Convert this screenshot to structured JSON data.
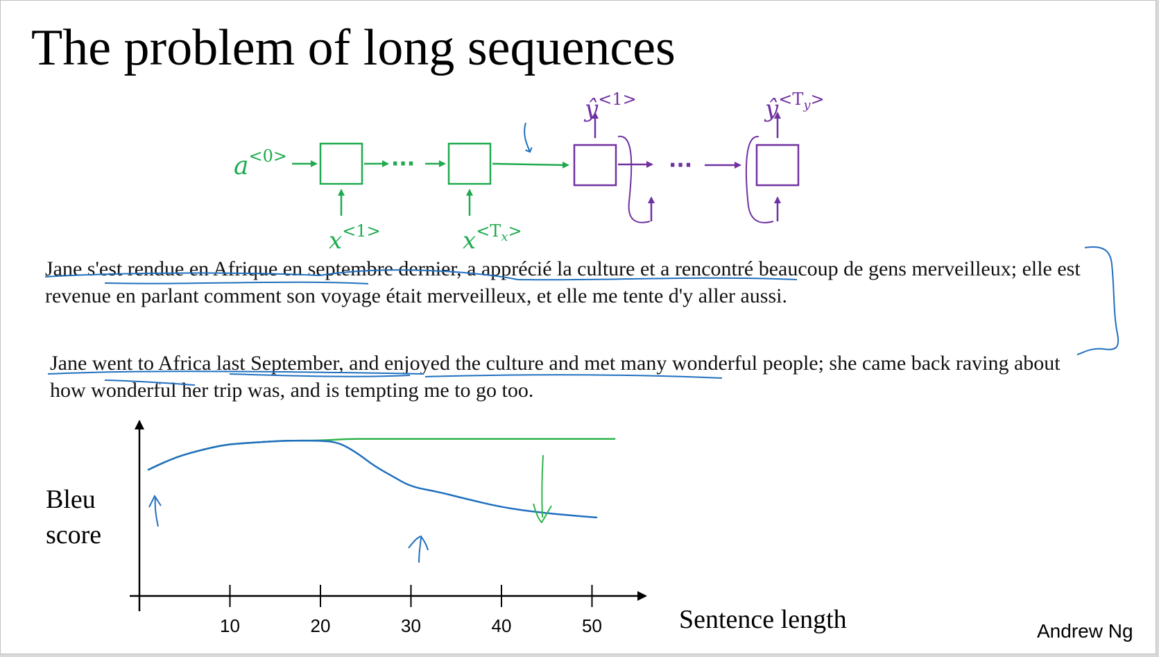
{
  "slide": {
    "title": "The problem of long sequences",
    "author": "Andrew Ng"
  },
  "colors": {
    "encoder": "#1faa4e",
    "decoder": "#7030a0",
    "annotation_blue": "#1f6fbf",
    "annotation_green": "#2fb34a"
  },
  "diagram": {
    "a0_label": {
      "base": "a",
      "sup": "<0>"
    },
    "x1_label": {
      "base": "x",
      "sup": "<1>"
    },
    "xTx_label": {
      "base": "x",
      "sup_open": "<T",
      "sup_sub": "x",
      "sup_close": ">"
    },
    "y1_label": {
      "base": "ŷ",
      "sup": "<1>"
    },
    "yTy_label": {
      "base": "ŷ",
      "sup_open": "<T",
      "sup_sub": "y",
      "sup_close": ">"
    },
    "ellipsis": "···"
  },
  "text": {
    "french": "Jane s'est rendue en Afrique en septembre dernier, a apprécié la culture et a rencontré beaucoup de gens merveilleux; elle est revenue en parlant comment son voyage était merveilleux, et elle me tente d'y aller aussi.",
    "english": "Jane went to Africa last September, and enjoyed the culture and met many wonderful people; she came back raving about how wonderful her trip was, and is tempting me to go too."
  },
  "chart_data": {
    "type": "line",
    "xlabel": "Sentence length",
    "ylabel_line1": "Bleu",
    "ylabel_line2": "score",
    "xticks": [
      10,
      20,
      30,
      40,
      50
    ],
    "xlim": [
      0,
      55
    ],
    "ylim": [
      0,
      1
    ],
    "series": [
      {
        "color": "#2fb34a",
        "x": [
          1,
          3,
          5,
          8,
          10,
          13,
          16,
          20,
          23,
          26,
          30,
          35,
          40,
          45,
          50,
          52.5
        ],
        "y": [
          0.74,
          0.79,
          0.83,
          0.87,
          0.89,
          0.9,
          0.91,
          0.91,
          0.92,
          0.92,
          0.92,
          0.92,
          0.92,
          0.92,
          0.92,
          0.92
        ]
      },
      {
        "color": "#1f6fbf",
        "x": [
          1,
          3,
          5,
          8,
          10,
          13,
          16,
          20,
          22,
          24,
          26,
          28,
          30,
          33,
          36,
          40,
          44,
          48,
          50.5
        ],
        "y": [
          0.74,
          0.79,
          0.83,
          0.87,
          0.89,
          0.9,
          0.91,
          0.91,
          0.9,
          0.84,
          0.76,
          0.7,
          0.64,
          0.61,
          0.57,
          0.52,
          0.49,
          0.47,
          0.46
        ]
      }
    ]
  }
}
